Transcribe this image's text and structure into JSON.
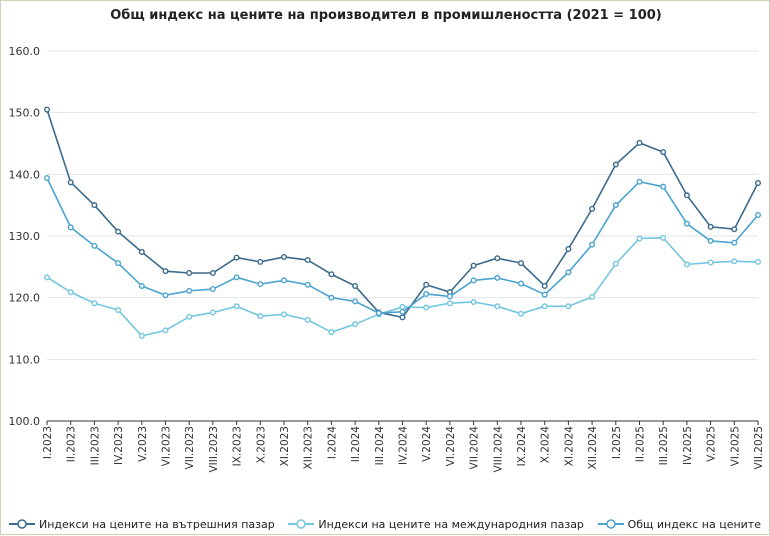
{
  "chart_data": {
    "type": "line",
    "title": "Общ индекс на цените на производител в промишлеността (2021 = 100)",
    "xlabel": "",
    "ylabel": "",
    "ylim": [
      100,
      160
    ],
    "yticks": [
      "100.0",
      "110.0",
      "120.0",
      "130.0",
      "140.0",
      "150.0",
      "160.0"
    ],
    "categories": [
      "I.2023",
      "II.2023",
      "III.2023",
      "IV.2023",
      "V.2023",
      "VI.2023",
      "VII.2023",
      "VIII.2023",
      "IX.2023",
      "X.2023",
      "XI.2023",
      "XII.2023",
      "I.2024",
      "II.2024",
      "III.2024",
      "IV.2024",
      "V.2024",
      "VI.2024",
      "VII.2024",
      "VIII.2024",
      "IX.2024",
      "X.2024",
      "XI.2024",
      "XII.2024",
      "I.2025",
      "II.2025",
      "III.2025",
      "IV.2025",
      "V.2025",
      "VI.2025",
      "VII.2025"
    ],
    "series": [
      {
        "name": "Индекси на цените на вътрешния пазар",
        "color": "#3b6a8c",
        "values": [
          150.5,
          138.7,
          135.0,
          130.7,
          127.4,
          124.3,
          124.0,
          124.0,
          126.5,
          125.8,
          126.6,
          126.1,
          123.8,
          121.9,
          117.6,
          116.8,
          122.1,
          120.9,
          125.2,
          126.4,
          125.6,
          121.9,
          127.9,
          134.4,
          141.6,
          145.1,
          143.6,
          136.6,
          131.5,
          131.1,
          138.6
        ]
      },
      {
        "name": "Индекси на цените на международния пазар",
        "color": "#73c6e0",
        "values": [
          123.3,
          120.9,
          119.1,
          118.0,
          113.8,
          114.7,
          116.9,
          117.6,
          118.6,
          117.0,
          117.3,
          116.4,
          114.4,
          115.7,
          117.3,
          118.5,
          118.4,
          119.1,
          119.3,
          118.6,
          117.4,
          118.6,
          118.6,
          120.1,
          125.5,
          129.6,
          129.7,
          125.4,
          125.7,
          125.9,
          125.8
        ]
      },
      {
        "name": "Общ индекс на цените",
        "color": "#4aa3cf",
        "values": [
          139.4,
          131.4,
          128.4,
          125.6,
          121.9,
          120.4,
          121.1,
          121.4,
          123.3,
          122.2,
          122.8,
          122.1,
          120.0,
          119.4,
          117.5,
          117.7,
          120.6,
          120.2,
          122.8,
          123.2,
          122.3,
          120.5,
          124.1,
          128.6,
          135.0,
          138.8,
          138.0,
          132.0,
          129.2,
          128.9,
          133.4
        ]
      }
    ],
    "grid": true,
    "legend_position": "bottom"
  }
}
